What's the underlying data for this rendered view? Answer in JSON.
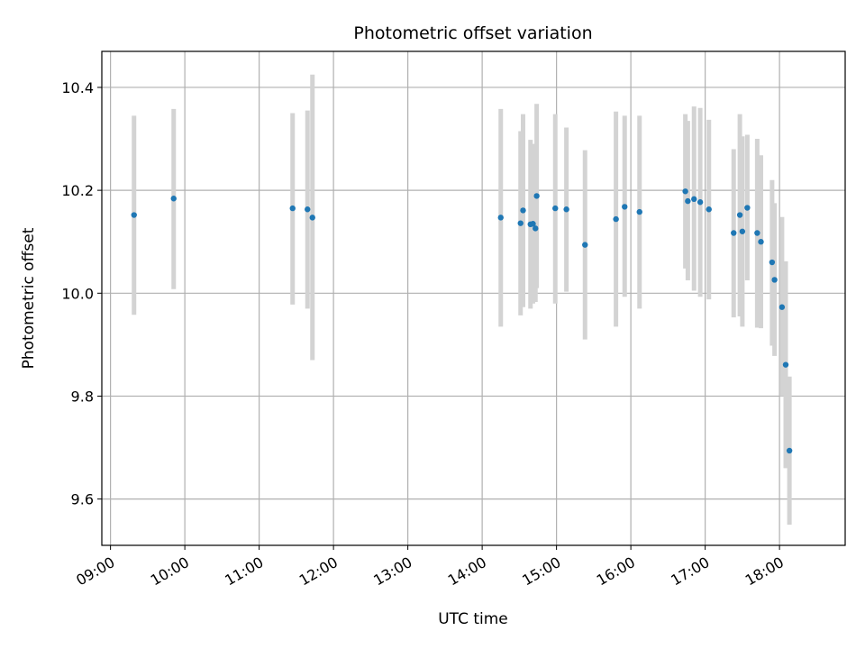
{
  "chart_data": {
    "type": "scatter",
    "title": "Photometric offset variation",
    "xlabel": "UTC time",
    "ylabel": "Photometric offset",
    "xlim": [
      "08:53",
      "18:53"
    ],
    "ylim": [
      9.51,
      10.47
    ],
    "xticks": [
      "09:00",
      "10:00",
      "11:00",
      "12:00",
      "13:00",
      "14:00",
      "15:00",
      "16:00",
      "17:00",
      "18:00"
    ],
    "yticks": [
      9.6,
      9.8,
      10.0,
      10.2,
      10.4
    ],
    "grid": true,
    "marker_color": "#1f77b4",
    "errorbar_color": "#d3d3d3",
    "points": [
      {
        "t": "09:19",
        "y": 10.152,
        "lo": 9.958,
        "hi": 10.345
      },
      {
        "t": "09:51",
        "y": 10.184,
        "lo": 10.008,
        "hi": 10.358
      },
      {
        "t": "11:27",
        "y": 10.165,
        "lo": 9.978,
        "hi": 10.35
      },
      {
        "t": "11:39",
        "y": 10.163,
        "lo": 9.97,
        "hi": 10.355
      },
      {
        "t": "11:43",
        "y": 10.147,
        "lo": 9.87,
        "hi": 10.425
      },
      {
        "t": "14:15",
        "y": 10.147,
        "lo": 9.935,
        "hi": 10.358
      },
      {
        "t": "14:31",
        "y": 10.136,
        "lo": 9.957,
        "hi": 10.315
      },
      {
        "t": "14:33",
        "y": 10.161,
        "lo": 9.973,
        "hi": 10.348
      },
      {
        "t": "14:39",
        "y": 10.134,
        "lo": 9.97,
        "hi": 10.298
      },
      {
        "t": "14:41",
        "y": 10.135,
        "lo": 9.98,
        "hi": 10.29
      },
      {
        "t": "14:43",
        "y": 10.126,
        "lo": 9.983,
        "hi": 10.29
      },
      {
        "t": "14:44",
        "y": 10.189,
        "lo": 10.01,
        "hi": 10.368
      },
      {
        "t": "14:59",
        "y": 10.165,
        "lo": 9.98,
        "hi": 10.348
      },
      {
        "t": "15:08",
        "y": 10.163,
        "lo": 10.003,
        "hi": 10.322
      },
      {
        "t": "15:23",
        "y": 10.094,
        "lo": 9.91,
        "hi": 10.278
      },
      {
        "t": "15:48",
        "y": 10.144,
        "lo": 9.935,
        "hi": 10.353
      },
      {
        "t": "15:55",
        "y": 10.168,
        "lo": 9.993,
        "hi": 10.345
      },
      {
        "t": "16:07",
        "y": 10.158,
        "lo": 9.97,
        "hi": 10.345
      },
      {
        "t": "16:44",
        "y": 10.198,
        "lo": 10.048,
        "hi": 10.348
      },
      {
        "t": "16:46",
        "y": 10.179,
        "lo": 10.025,
        "hi": 10.335
      },
      {
        "t": "16:51",
        "y": 10.183,
        "lo": 10.005,
        "hi": 10.363
      },
      {
        "t": "16:56",
        "y": 10.177,
        "lo": 9.993,
        "hi": 10.36
      },
      {
        "t": "17:03",
        "y": 10.163,
        "lo": 9.988,
        "hi": 10.337
      },
      {
        "t": "17:23",
        "y": 10.117,
        "lo": 9.953,
        "hi": 10.28
      },
      {
        "t": "17:28",
        "y": 10.152,
        "lo": 9.955,
        "hi": 10.348
      },
      {
        "t": "17:30",
        "y": 10.12,
        "lo": 9.935,
        "hi": 10.305
      },
      {
        "t": "17:34",
        "y": 10.166,
        "lo": 10.025,
        "hi": 10.308
      },
      {
        "t": "17:42",
        "y": 10.117,
        "lo": 9.933,
        "hi": 10.3
      },
      {
        "t": "17:45",
        "y": 10.1,
        "lo": 9.932,
        "hi": 10.268
      },
      {
        "t": "17:54",
        "y": 10.06,
        "lo": 9.898,
        "hi": 10.22
      },
      {
        "t": "17:56",
        "y": 10.026,
        "lo": 9.878,
        "hi": 10.175
      },
      {
        "t": "18:02",
        "y": 9.973,
        "lo": 9.8,
        "hi": 10.148
      },
      {
        "t": "18:05",
        "y": 9.861,
        "lo": 9.66,
        "hi": 10.062
      },
      {
        "t": "18:08",
        "y": 9.694,
        "lo": 9.55,
        "hi": 9.838
      }
    ]
  }
}
